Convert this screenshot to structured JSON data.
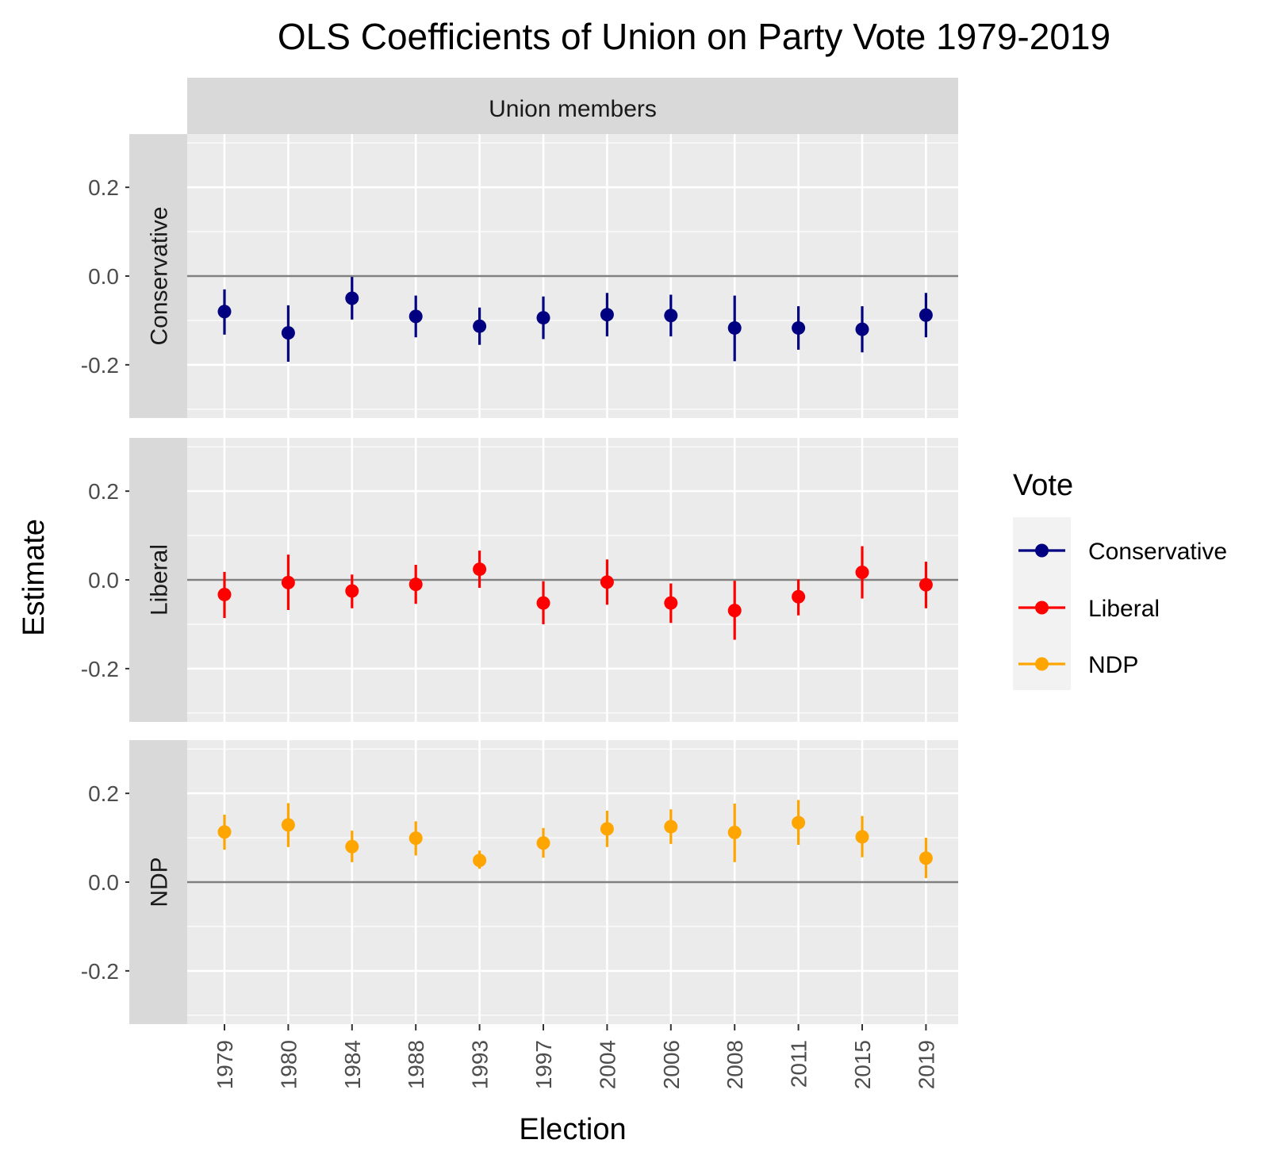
{
  "chart_data": {
    "type": "scatter",
    "title": "OLS Coefficients of Union on Party Vote 1979-2019",
    "column_facet": "Union members",
    "xlabel": "Election",
    "ylabel": "Estimate",
    "categories": [
      "1979",
      "1980",
      "1984",
      "1988",
      "1993",
      "1997",
      "2004",
      "2006",
      "2008",
      "2011",
      "2015",
      "2019"
    ],
    "ylim": [
      -0.32,
      0.32
    ],
    "yticks": [
      -0.2,
      0.0,
      0.2
    ],
    "ytick_labels": [
      "-0.2",
      "0.0",
      "0.2"
    ],
    "reference_line": 0,
    "grid": true,
    "legend": {
      "title": "Vote",
      "position": "right"
    },
    "series": [
      {
        "name": "Conservative",
        "panel": "Conservative",
        "color": "#000080",
        "values": [
          -0.08,
          -0.128,
          -0.05,
          -0.091,
          -0.113,
          -0.094,
          -0.087,
          -0.089,
          -0.117,
          -0.117,
          -0.12,
          -0.088
        ],
        "lower": [
          -0.132,
          -0.193,
          -0.098,
          -0.138,
          -0.155,
          -0.142,
          -0.136,
          -0.136,
          -0.192,
          -0.166,
          -0.172,
          -0.138
        ],
        "upper": [
          -0.03,
          -0.066,
          -0.002,
          -0.044,
          -0.071,
          -0.046,
          -0.038,
          -0.042,
          -0.044,
          -0.068,
          -0.068,
          -0.038
        ]
      },
      {
        "name": "Liberal",
        "panel": "Liberal",
        "color": "#ff0000",
        "values": [
          -0.033,
          -0.006,
          -0.025,
          -0.01,
          0.024,
          -0.052,
          -0.005,
          -0.052,
          -0.069,
          -0.038,
          0.017,
          -0.011
        ],
        "lower": [
          -0.086,
          -0.068,
          -0.064,
          -0.054,
          -0.018,
          -0.1,
          -0.056,
          -0.097,
          -0.135,
          -0.08,
          -0.042,
          -0.064
        ],
        "upper": [
          0.018,
          0.057,
          0.012,
          0.034,
          0.066,
          -0.003,
          0.046,
          -0.008,
          -0.002,
          0.001,
          0.076,
          0.041
        ]
      },
      {
        "name": "NDP",
        "panel": "NDP",
        "color": "#ffa500",
        "values": [
          0.113,
          0.129,
          0.08,
          0.099,
          0.049,
          0.088,
          0.12,
          0.125,
          0.112,
          0.134,
          0.102,
          0.054
        ],
        "lower": [
          0.073,
          0.079,
          0.045,
          0.06,
          0.03,
          0.055,
          0.079,
          0.086,
          0.045,
          0.084,
          0.056,
          0.009
        ],
        "upper": [
          0.152,
          0.178,
          0.116,
          0.137,
          0.071,
          0.122,
          0.161,
          0.164,
          0.177,
          0.185,
          0.149,
          0.1
        ]
      }
    ]
  }
}
